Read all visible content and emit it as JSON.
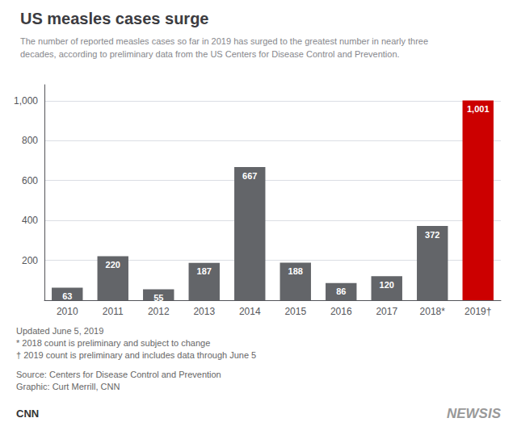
{
  "chart_data": {
    "type": "bar",
    "title": "US measles cases surge",
    "subtitle": "The number of reported measles cases so far in 2019 has surged to the greatest number in nearly three\ndecades, according to preliminary data from the US Centers for Disease Control and Prevention.",
    "categories": [
      "2010",
      "2011",
      "2012",
      "2013",
      "2014",
      "2015",
      "2016",
      "2017",
      "2018*",
      "2019†"
    ],
    "values": [
      63,
      220,
      55,
      187,
      667,
      188,
      86,
      120,
      372,
      1001
    ],
    "value_labels": [
      "63",
      "220",
      "55",
      "187",
      "667",
      "188",
      "86",
      "120",
      "372",
      "1,001"
    ],
    "colors": [
      "#636569",
      "#636569",
      "#636569",
      "#636569",
      "#636569",
      "#636569",
      "#636569",
      "#636569",
      "#636569",
      "#cc0000"
    ],
    "data_labels": true,
    "ylim": [
      0,
      1080
    ],
    "yticks": [
      200,
      400,
      600,
      800,
      {
        "value": 1000,
        "label": "1,000"
      }
    ],
    "grid": true,
    "annotations": [
      "Updated June 5, 2019\n* 2018 count is preliminary and subject to change\n† 2019 count is preliminary and includes data through June 5",
      "Source: Centers for Disease Control and Prevention\nGraphic: Curt Merrill, CNN",
      "CNN",
      "NEWSIS"
    ]
  }
}
